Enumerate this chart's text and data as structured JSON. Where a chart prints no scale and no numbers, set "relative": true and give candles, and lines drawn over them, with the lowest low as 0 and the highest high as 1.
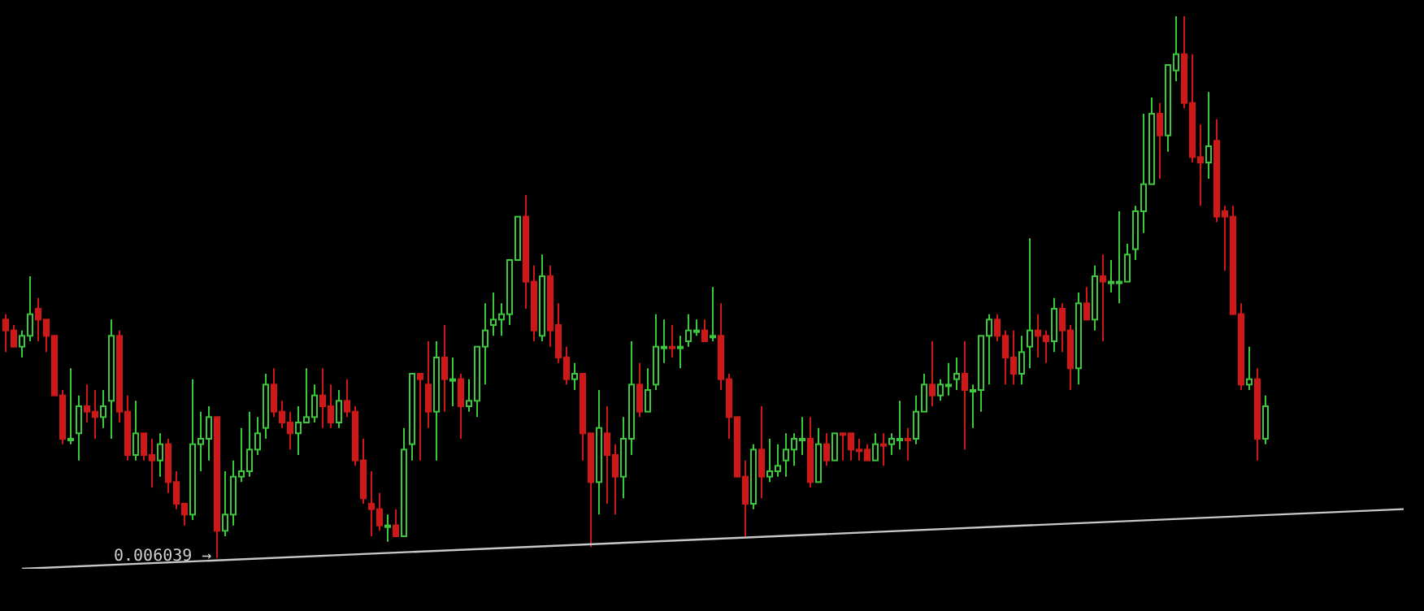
{
  "chart_data": {
    "type": "candlestick",
    "relative": true,
    "categories": [
      null,
      null,
      null,
      null,
      null,
      null,
      null,
      null,
      null,
      null,
      null,
      null,
      null,
      null,
      null,
      null,
      null,
      null,
      null,
      null,
      null,
      null,
      null,
      null,
      null,
      null,
      null,
      null,
      null,
      null,
      null,
      null,
      null,
      null,
      null,
      null,
      null,
      null,
      null,
      null,
      null,
      null,
      null,
      null,
      null,
      null,
      null,
      null,
      null,
      null,
      null,
      null,
      null,
      null,
      null,
      null,
      null,
      null,
      null,
      null,
      null,
      null,
      null,
      null,
      null,
      null,
      null,
      null,
      null,
      null,
      null,
      null,
      null,
      null,
      null,
      null,
      null,
      null,
      null,
      null,
      null,
      null,
      null,
      null,
      null,
      null,
      null,
      null,
      null,
      null,
      null,
      null,
      null,
      null,
      null,
      null,
      null,
      null,
      null,
      null,
      null,
      null,
      null,
      null,
      null,
      null,
      null,
      null,
      null,
      null,
      null,
      null,
      null,
      null,
      null,
      null,
      null,
      null,
      null,
      null,
      null,
      null,
      null,
      null,
      null,
      null,
      null,
      null,
      null,
      null,
      null,
      null,
      null,
      null,
      null,
      null,
      null,
      null,
      null,
      null,
      null,
      null,
      null,
      null,
      null,
      null,
      null,
      null,
      null,
      null,
      null,
      null,
      null,
      null,
      null,
      null,
      null,
      null,
      null,
      null,
      null,
      null,
      null,
      null,
      null,
      null,
      null,
      null,
      null,
      null,
      null,
      null,
      null,
      null,
      null
    ],
    "ohlc": [
      [
        0.44,
        0.45,
        0.38,
        0.42
      ],
      [
        0.42,
        0.43,
        0.39,
        0.39
      ],
      [
        0.39,
        0.42,
        0.37,
        0.41
      ],
      [
        0.41,
        0.52,
        0.4,
        0.45
      ],
      [
        0.46,
        0.48,
        0.4,
        0.44
      ],
      [
        0.44,
        0.44,
        0.38,
        0.41
      ],
      [
        0.41,
        0.41,
        0.3,
        0.3
      ],
      [
        0.3,
        0.31,
        0.21,
        0.22
      ],
      [
        0.22,
        0.35,
        0.21,
        0.22
      ],
      [
        0.23,
        0.3,
        0.18,
        0.28
      ],
      [
        0.28,
        0.32,
        0.25,
        0.27
      ],
      [
        0.27,
        0.31,
        0.22,
        0.26
      ],
      [
        0.26,
        0.31,
        0.24,
        0.28
      ],
      [
        0.29,
        0.44,
        0.22,
        0.41
      ],
      [
        0.41,
        0.42,
        0.25,
        0.27
      ],
      [
        0.27,
        0.3,
        0.18,
        0.19
      ],
      [
        0.19,
        0.29,
        0.18,
        0.23
      ],
      [
        0.23,
        0.23,
        0.18,
        0.19
      ],
      [
        0.19,
        0.22,
        0.13,
        0.18
      ],
      [
        0.18,
        0.23,
        0.15,
        0.21
      ],
      [
        0.21,
        0.22,
        0.12,
        0.14
      ],
      [
        0.14,
        0.16,
        0.09,
        0.1
      ],
      [
        0.1,
        0.1,
        0.06,
        0.08
      ],
      [
        0.08,
        0.33,
        0.07,
        0.21
      ],
      [
        0.21,
        0.27,
        0.16,
        0.22
      ],
      [
        0.22,
        0.28,
        0.18,
        0.26
      ],
      [
        0.26,
        0.26,
        0,
        0.05
      ],
      [
        0.05,
        0.16,
        0.04,
        0.08
      ],
      [
        0.08,
        0.18,
        0.06,
        0.15
      ],
      [
        0.15,
        0.24,
        0.14,
        0.16
      ],
      [
        0.16,
        0.27,
        0.15,
        0.2
      ],
      [
        0.2,
        0.26,
        0.19,
        0.23
      ],
      [
        0.24,
        0.34,
        0.22,
        0.32
      ],
      [
        0.32,
        0.35,
        0.26,
        0.27
      ],
      [
        0.27,
        0.29,
        0.24,
        0.25
      ],
      [
        0.25,
        0.27,
        0.2,
        0.23
      ],
      [
        0.23,
        0.28,
        0.19,
        0.25
      ],
      [
        0.25,
        0.35,
        0.25,
        0.26
      ],
      [
        0.26,
        0.32,
        0.25,
        0.3
      ],
      [
        0.3,
        0.35,
        0.24,
        0.28
      ],
      [
        0.28,
        0.32,
        0.24,
        0.25
      ],
      [
        0.25,
        0.31,
        0.24,
        0.29
      ],
      [
        0.29,
        0.33,
        0.26,
        0.27
      ],
      [
        0.27,
        0.28,
        0.17,
        0.18
      ],
      [
        0.18,
        0.22,
        0.1,
        0.11
      ],
      [
        0.1,
        0.16,
        0.04,
        0.09
      ],
      [
        0.09,
        0.12,
        0.05,
        0.06
      ],
      [
        0.06,
        0.08,
        0.03,
        0.06
      ],
      [
        0.06,
        0.09,
        0.04,
        0.04
      ],
      [
        0.04,
        0.24,
        0.04,
        0.2
      ],
      [
        0.21,
        0.34,
        0.18,
        0.34
      ],
      [
        0.34,
        0.34,
        0.18,
        0.33
      ],
      [
        0.32,
        0.4,
        0.24,
        0.27
      ],
      [
        0.27,
        0.4,
        0.18,
        0.37
      ],
      [
        0.37,
        0.43,
        0.27,
        0.33
      ],
      [
        0.33,
        0.37,
        0.28,
        0.33
      ],
      [
        0.33,
        0.34,
        0.22,
        0.28
      ],
      [
        0.28,
        0.33,
        0.27,
        0.29
      ],
      [
        0.29,
        0.39,
        0.26,
        0.39
      ],
      [
        0.39,
        0.47,
        0.32,
        0.42
      ],
      [
        0.43,
        0.49,
        0.41,
        0.44
      ],
      [
        0.44,
        0.47,
        0.41,
        0.45
      ],
      [
        0.45,
        0.55,
        0.43,
        0.55
      ],
      [
        0.55,
        0.63,
        0.55,
        0.63
      ],
      [
        0.63,
        0.67,
        0.46,
        0.51
      ],
      [
        0.51,
        0.54,
        0.4,
        0.42
      ],
      [
        0.41,
        0.56,
        0.4,
        0.52
      ],
      [
        0.52,
        0.54,
        0.39,
        0.42
      ],
      [
        0.43,
        0.47,
        0.36,
        0.37
      ],
      [
        0.37,
        0.39,
        0.32,
        0.33
      ],
      [
        0.33,
        0.36,
        0.31,
        0.34
      ],
      [
        0.34,
        0.34,
        0.18,
        0.23
      ],
      [
        0.23,
        0.23,
        0.02,
        0.14
      ],
      [
        0.14,
        0.31,
        0.08,
        0.24
      ],
      [
        0.23,
        0.28,
        0.1,
        0.19
      ],
      [
        0.19,
        0.21,
        0.08,
        0.15
      ],
      [
        0.15,
        0.26,
        0.11,
        0.22
      ],
      [
        0.22,
        0.4,
        0.19,
        0.32
      ],
      [
        0.32,
        0.36,
        0.26,
        0.27
      ],
      [
        0.27,
        0.35,
        0.27,
        0.31
      ],
      [
        0.32,
        0.45,
        0.31,
        0.39
      ],
      [
        0.39,
        0.44,
        0.36,
        0.39
      ],
      [
        0.39,
        0.43,
        0.37,
        0.39
      ],
      [
        0.39,
        0.41,
        0.35,
        0.39
      ],
      [
        0.4,
        0.45,
        0.39,
        0.42
      ],
      [
        0.42,
        0.44,
        0.41,
        0.42
      ],
      [
        0.42,
        0.44,
        0.4,
        0.4
      ],
      [
        0.41,
        0.5,
        0.4,
        0.41
      ],
      [
        0.41,
        0.47,
        0.31,
        0.33
      ],
      [
        0.33,
        0.34,
        0.22,
        0.26
      ],
      [
        0.26,
        0.26,
        0.15,
        0.15
      ],
      [
        0.15,
        0.18,
        0.04,
        0.1
      ],
      [
        0.1,
        0.21,
        0.09,
        0.2
      ],
      [
        0.2,
        0.28,
        0.11,
        0.15
      ],
      [
        0.15,
        0.22,
        0.14,
        0.16
      ],
      [
        0.16,
        0.21,
        0.15,
        0.17
      ],
      [
        0.18,
        0.23,
        0.15,
        0.2
      ],
      [
        0.2,
        0.23,
        0.17,
        0.22
      ],
      [
        0.22,
        0.26,
        0.19,
        0.22
      ],
      [
        0.22,
        0.26,
        0.13,
        0.14
      ],
      [
        0.14,
        0.24,
        0.14,
        0.21
      ],
      [
        0.21,
        0.23,
        0.17,
        0.18
      ],
      [
        0.18,
        0.23,
        0.18,
        0.23
      ],
      [
        0.23,
        0.23,
        0.18,
        0.23
      ],
      [
        0.23,
        0.23,
        0.18,
        0.2
      ],
      [
        0.2,
        0.22,
        0.18,
        0.2
      ],
      [
        0.2,
        0.21,
        0.18,
        0.18
      ],
      [
        0.18,
        0.23,
        0.18,
        0.21
      ],
      [
        0.21,
        0.23,
        0.17,
        0.21
      ],
      [
        0.21,
        0.23,
        0.19,
        0.22
      ],
      [
        0.22,
        0.29,
        0.2,
        0.22
      ],
      [
        0.22,
        0.24,
        0.18,
        0.22
      ],
      [
        0.22,
        0.3,
        0.21,
        0.27
      ],
      [
        0.27,
        0.34,
        0.27,
        0.32
      ],
      [
        0.32,
        0.4,
        0.28,
        0.3
      ],
      [
        0.3,
        0.33,
        0.29,
        0.32
      ],
      [
        0.32,
        0.36,
        0.3,
        0.32
      ],
      [
        0.33,
        0.37,
        0.31,
        0.34
      ],
      [
        0.34,
        0.4,
        0.2,
        0.31
      ],
      [
        0.31,
        0.32,
        0.24,
        0.31
      ],
      [
        0.31,
        0.41,
        0.27,
        0.41
      ],
      [
        0.41,
        0.45,
        0.32,
        0.44
      ],
      [
        0.44,
        0.45,
        0.4,
        0.41
      ],
      [
        0.41,
        0.42,
        0.32,
        0.37
      ],
      [
        0.37,
        0.42,
        0.32,
        0.34
      ],
      [
        0.34,
        0.41,
        0.32,
        0.38
      ],
      [
        0.39,
        0.59,
        0.35,
        0.42
      ],
      [
        0.42,
        0.45,
        0.37,
        0.41
      ],
      [
        0.41,
        0.42,
        0.36,
        0.4
      ],
      [
        0.4,
        0.48,
        0.38,
        0.46
      ],
      [
        0.46,
        0.47,
        0.38,
        0.42
      ],
      [
        0.42,
        0.43,
        0.31,
        0.35
      ],
      [
        0.35,
        0.49,
        0.32,
        0.47
      ],
      [
        0.47,
        0.5,
        0.44,
        0.44
      ],
      [
        0.44,
        0.54,
        0.42,
        0.52
      ],
      [
        0.52,
        0.56,
        0.4,
        0.51
      ],
      [
        0.51,
        0.55,
        0.49,
        0.51
      ],
      [
        0.51,
        0.64,
        0.47,
        0.51
      ],
      [
        0.51,
        0.58,
        0.51,
        0.56
      ],
      [
        0.57,
        0.65,
        0.55,
        0.64
      ],
      [
        0.64,
        0.82,
        0.6,
        0.69
      ],
      [
        0.69,
        0.85,
        0.69,
        0.82
      ],
      [
        0.82,
        0.84,
        0.7,
        0.78
      ],
      [
        0.78,
        0.91,
        0.75,
        0.91
      ],
      [
        0.9,
        1,
        0.88,
        0.93
      ],
      [
        0.93,
        1,
        0.83,
        0.84
      ],
      [
        0.84,
        0.93,
        0.73,
        0.74
      ],
      [
        0.74,
        0.8,
        0.65,
        0.73
      ],
      [
        0.73,
        0.86,
        0.7,
        0.76
      ],
      [
        0.77,
        0.81,
        0.62,
        0.63
      ],
      [
        0.64,
        0.65,
        0.53,
        0.63
      ],
      [
        0.63,
        0.65,
        0.45,
        0.45
      ],
      [
        0.45,
        0.47,
        0.31,
        0.32
      ],
      [
        0.32,
        0.39,
        0.31,
        0.33
      ],
      [
        0.33,
        0.35,
        0.18,
        0.22
      ],
      [
        0.22,
        0.3,
        0.21,
        0.28
      ],
      null,
      null,
      null,
      null,
      null,
      null,
      null,
      null,
      null,
      null,
      null,
      null,
      null,
      null,
      null,
      null,
      null,
      null,
      null
    ],
    "colors": [
      "#d01818",
      "#d01818",
      "#3cc83c",
      "#3cc83c",
      "#d01818",
      "#d01818",
      "#d01818",
      "#d01818",
      "#3cc83c",
      "#3cc83c",
      "#d01818",
      "#d01818",
      "#3cc83c",
      "#3cc83c",
      "#d01818",
      "#d01818",
      "#3cc83c",
      "#d01818",
      "#d01818",
      "#3cc83c",
      "#d01818",
      "#d01818",
      "#d01818",
      "#3cc83c",
      "#3cc83c",
      "#3cc83c",
      "#d01818",
      "#3cc83c",
      "#3cc83c",
      "#3cc83c",
      "#3cc83c",
      "#3cc83c",
      "#3cc83c",
      "#d01818",
      "#d01818",
      "#d01818",
      "#3cc83c",
      "#3cc83c",
      "#3cc83c",
      "#d01818",
      "#d01818",
      "#3cc83c",
      "#d01818",
      "#d01818",
      "#d01818",
      "#d01818",
      "#d01818",
      "#3cc83c",
      "#d01818",
      "#3cc83c",
      "#3cc83c",
      "#d01818",
      "#d01818",
      "#3cc83c",
      "#d01818",
      "#3cc83c",
      "#d01818",
      "#3cc83c",
      "#3cc83c",
      "#3cc83c",
      "#3cc83c",
      "#3cc83c",
      "#3cc83c",
      "#3cc83c",
      "#d01818",
      "#d01818",
      "#3cc83c",
      "#d01818",
      "#d01818",
      "#d01818",
      "#3cc83c",
      "#d01818",
      "#d01818",
      "#3cc83c",
      "#d01818",
      "#d01818",
      "#3cc83c",
      "#3cc83c",
      "#d01818",
      "#3cc83c",
      "#3cc83c",
      "#3cc83c",
      "#d01818",
      "#3cc83c",
      "#3cc83c",
      "#3cc83c",
      "#d01818",
      "#3cc83c",
      "#d01818",
      "#d01818",
      "#d01818",
      "#d01818",
      "#3cc83c",
      "#d01818",
      "#3cc83c",
      "#3cc83c",
      "#3cc83c",
      "#3cc83c",
      "#3cc83c",
      "#d01818",
      "#3cc83c",
      "#d01818",
      "#3cc83c",
      "#d01818",
      "#d01818",
      "#d01818",
      "#d01818",
      "#3cc83c",
      "#d01818",
      "#3cc83c",
      "#3cc83c",
      "#d01818",
      "#3cc83c",
      "#3cc83c",
      "#d01818",
      "#3cc83c",
      "#3cc83c",
      "#3cc83c",
      "#d01818",
      "#3cc83c",
      "#3cc83c",
      "#3cc83c",
      "#d01818",
      "#d01818",
      "#d01818",
      "#3cc83c",
      "#3cc83c",
      "#d01818",
      "#d01818",
      "#3cc83c",
      "#d01818",
      "#d01818",
      "#3cc83c",
      "#d01818",
      "#3cc83c",
      "#d01818",
      "#3cc83c",
      "#3cc83c",
      "#3cc83c",
      "#3cc83c",
      "#3cc83c",
      "#3cc83c",
      "#d01818",
      "#3cc83c",
      "#3cc83c",
      "#d01818",
      "#d01818",
      "#d01818",
      "#3cc83c",
      "#d01818",
      "#d01818",
      "#d01818",
      "#d01818",
      "#3cc83c",
      "#d01818",
      "#3cc83c",
      null,
      null,
      null,
      null,
      null,
      null,
      null,
      null,
      null,
      null,
      null,
      null,
      null,
      null,
      null,
      null,
      null,
      null,
      null
    ],
    "series": [
      {
        "type": "line",
        "color": "#c8c8c8",
        "values": [
          null,
          null,
          -0.02,
          null,
          null,
          null,
          null,
          null,
          null,
          null,
          null,
          null,
          null,
          null,
          null,
          null,
          null,
          null,
          null,
          null,
          null,
          null,
          null,
          null,
          null,
          null,
          null,
          null,
          null,
          null,
          null,
          null,
          null,
          null,
          null,
          null,
          null,
          null,
          null,
          null,
          null,
          null,
          null,
          null,
          null,
          null,
          null,
          null,
          null,
          null,
          null,
          null,
          null,
          null,
          null,
          null,
          null,
          null,
          null,
          null,
          null,
          null,
          null,
          null,
          null,
          null,
          null,
          null,
          null,
          null,
          null,
          null,
          null,
          null,
          null,
          null,
          null,
          null,
          null,
          null,
          null,
          null,
          null,
          null,
          null,
          null,
          null,
          null,
          null,
          null,
          null,
          null,
          null,
          null,
          null,
          null,
          null,
          null,
          null,
          null,
          null,
          null,
          null,
          null,
          null,
          null,
          null,
          null,
          null,
          null,
          null,
          null,
          null,
          null,
          null,
          null,
          null,
          null,
          null,
          null,
          null,
          null,
          null,
          null,
          null,
          null,
          null,
          null,
          null,
          null,
          null,
          null,
          null,
          null,
          null,
          null,
          null,
          null,
          null,
          null,
          null,
          null,
          null,
          null,
          null,
          null,
          null,
          null,
          null,
          null,
          null,
          null,
          null,
          null,
          null,
          null,
          null,
          null,
          null,
          null,
          null,
          null,
          null,
          null,
          null,
          null,
          null,
          null,
          null,
          null,
          null,
          null,
          0.09,
          null,
          null
        ]
      }
    ],
    "annotations": [
      "0.006039 →"
    ]
  }
}
